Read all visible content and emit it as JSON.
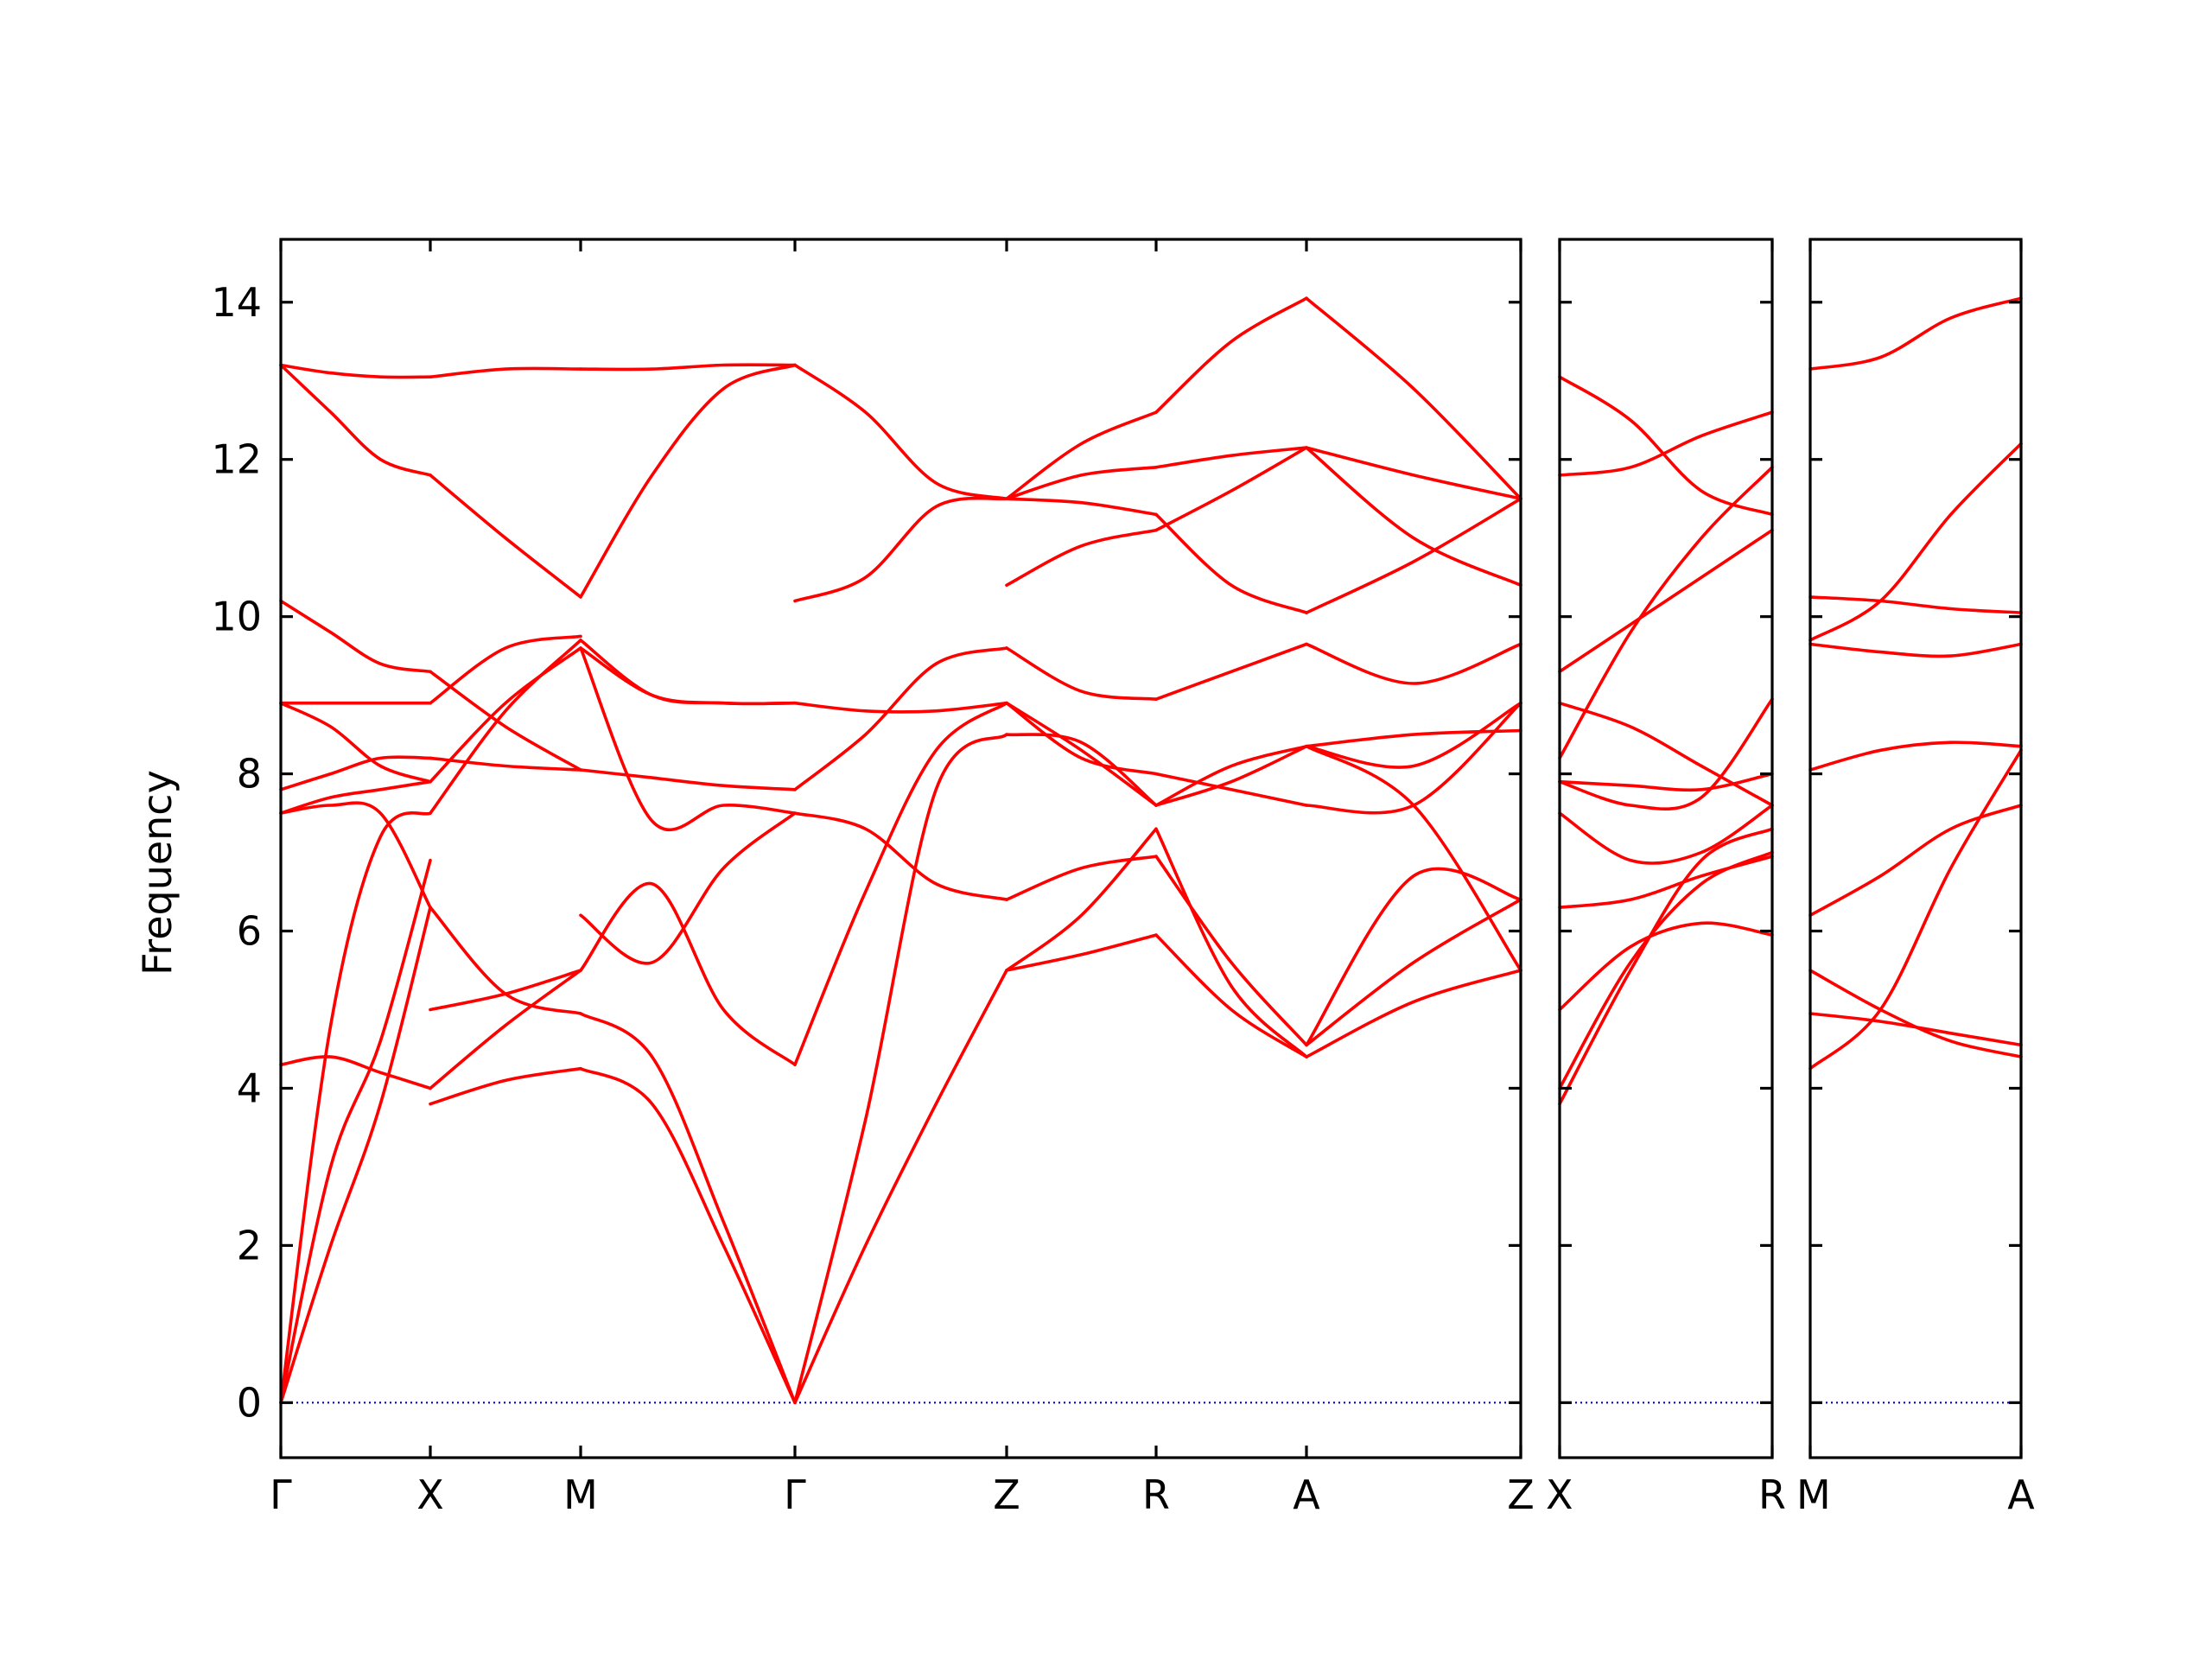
{
  "chart_data": {
    "type": "line",
    "ylabel": "Frequency",
    "ylim": [
      -0.7,
      14.8
    ],
    "yticks": [
      0,
      2,
      4,
      6,
      8,
      10,
      12,
      14
    ],
    "grid": false,
    "legend": "none",
    "colors": {
      "bands": "#ff0000",
      "zero_line": "#0000cc",
      "axes": "#000000"
    },
    "x_labels": [
      "Γ",
      "X",
      "M",
      "Γ",
      "Z",
      "R",
      "A",
      "Z",
      "X",
      "R",
      "M",
      "A"
    ],
    "segments": [
      {
        "from": "Γ",
        "to": "X",
        "bands": [
          [
            0,
            2.0,
            3.8,
            6.3
          ],
          [
            0,
            3.0,
            4.6,
            6.9
          ],
          [
            0,
            4.8,
            7.2,
            7.5
          ],
          [
            4.3,
            4.4,
            4.2,
            4.0
          ],
          [
            7.5,
            7.6,
            7.5,
            6.3
          ],
          [
            7.5,
            7.7,
            7.8,
            7.9
          ],
          [
            7.8,
            8.0,
            8.2,
            8.2
          ],
          [
            8.9,
            8.9,
            8.9,
            8.9
          ],
          [
            8.9,
            8.6,
            8.1,
            7.9
          ],
          [
            10.2,
            9.8,
            9.4,
            9.3
          ],
          [
            13.2,
            12.6,
            12.0,
            11.8
          ],
          [
            13.2,
            13.1,
            13.05,
            13.05
          ]
        ]
      },
      {
        "from": "X",
        "to": "M",
        "bands": [
          [
            3.8,
            4.1,
            4.25
          ],
          [
            4.0,
            4.8,
            5.5
          ],
          [
            5.0,
            5.2,
            5.5
          ],
          [
            6.3,
            5.2,
            4.95
          ],
          [
            7.5,
            8.8,
            9.7
          ],
          [
            7.9,
            8.9,
            9.6
          ],
          [
            8.2,
            8.1,
            8.05
          ],
          [
            8.9,
            9.6,
            9.75
          ],
          [
            9.3,
            8.6,
            8.05
          ],
          [
            11.8,
            11.0,
            10.25
          ],
          [
            13.05,
            13.15,
            13.15
          ]
        ]
      },
      {
        "from": "M",
        "to": "Γ",
        "bands": [
          [
            4.25,
            3.8,
            2.0,
            0
          ],
          [
            4.95,
            4.4,
            2.3,
            0
          ],
          [
            5.5,
            6.6,
            5.0,
            4.3
          ],
          [
            6.2,
            5.6,
            6.8,
            7.5
          ],
          [
            9.6,
            7.4,
            7.6,
            7.5
          ],
          [
            9.7,
            9.0,
            8.9,
            8.9
          ],
          [
            9.6,
            9.0,
            8.9,
            8.9
          ],
          [
            8.05,
            7.95,
            7.85,
            7.8
          ],
          [
            10.25,
            11.8,
            12.9,
            13.2
          ],
          [
            13.15,
            13.15,
            13.2,
            13.2
          ]
        ]
      },
      {
        "from": "Γ",
        "to": "Z",
        "bands": [
          [
            0,
            2.0,
            3.8,
            5.5
          ],
          [
            0,
            3.6,
            7.8,
            8.5
          ],
          [
            4.3,
            6.5,
            8.3,
            8.9
          ],
          [
            7.5,
            7.3,
            6.6,
            6.4
          ],
          [
            7.8,
            8.5,
            9.4,
            9.6
          ],
          [
            8.9,
            8.8,
            8.8,
            8.9
          ],
          [
            10.2,
            10.5,
            11.4,
            11.5
          ],
          [
            13.2,
            12.6,
            11.7,
            11.5
          ]
        ]
      },
      {
        "from": "Z",
        "to": "R",
        "bands": [
          [
            5.5,
            5.7,
            5.95
          ],
          [
            5.5,
            6.2,
            7.3
          ],
          [
            6.4,
            6.8,
            6.95
          ],
          [
            8.5,
            8.4,
            7.6
          ],
          [
            8.9,
            8.3,
            7.6
          ],
          [
            8.9,
            8.2,
            8.0
          ],
          [
            9.6,
            9.05,
            8.95
          ],
          [
            10.4,
            10.9,
            11.1
          ],
          [
            11.5,
            11.45,
            11.3
          ],
          [
            11.5,
            11.8,
            11.9
          ],
          [
            11.5,
            12.2,
            12.6
          ]
        ]
      },
      {
        "from": "R",
        "to": "A",
        "bands": [
          [
            5.95,
            5.0,
            4.4
          ],
          [
            7.3,
            5.3,
            4.4
          ],
          [
            6.95,
            5.6,
            4.55
          ],
          [
            7.6,
            7.9,
            8.35
          ],
          [
            8.0,
            7.8,
            7.6
          ],
          [
            7.6,
            8.1,
            8.35
          ],
          [
            8.95,
            9.3,
            9.65
          ],
          [
            11.3,
            10.4,
            10.05
          ],
          [
            11.1,
            11.6,
            12.15
          ],
          [
            11.9,
            12.05,
            12.15
          ],
          [
            12.6,
            13.5,
            14.05
          ]
        ]
      },
      {
        "from": "A",
        "to": "Z",
        "bands": [
          [
            4.4,
            5.1,
            5.5
          ],
          [
            4.55,
            6.7,
            6.4
          ],
          [
            4.55,
            5.6,
            6.4
          ],
          [
            8.35,
            7.6,
            5.5
          ],
          [
            7.6,
            7.6,
            8.9
          ],
          [
            8.35,
            8.5,
            8.55
          ],
          [
            8.35,
            8.1,
            8.9
          ],
          [
            9.65,
            9.15,
            9.65
          ],
          [
            10.05,
            10.7,
            11.5
          ],
          [
            12.15,
            11.0,
            10.4
          ],
          [
            12.15,
            11.8,
            11.5
          ],
          [
            14.05,
            12.9,
            11.5
          ]
        ]
      },
      {
        "from": "X",
        "to": "R",
        "bands": [
          [
            3.8,
            5.5,
            6.9,
            7.3
          ],
          [
            4.0,
            5.6,
            6.6,
            7.0
          ],
          [
            5.0,
            5.8,
            6.1,
            5.95
          ],
          [
            6.3,
            6.4,
            6.7,
            6.95
          ],
          [
            7.5,
            6.9,
            7.0,
            7.6
          ],
          [
            7.9,
            7.6,
            7.7,
            8.95
          ],
          [
            7.9,
            7.85,
            7.8,
            8.0
          ],
          [
            8.9,
            8.6,
            8.1,
            7.6
          ],
          [
            8.2,
            9.8,
            11.0,
            11.9
          ],
          [
            9.3,
            9.9,
            10.5,
            11.1
          ],
          [
            13.05,
            12.5,
            11.6,
            11.3
          ],
          [
            11.8,
            11.9,
            12.3,
            12.6
          ]
        ]
      },
      {
        "from": "M",
        "to": "A",
        "bands": [
          [
            4.25,
            5.0,
            6.8,
            8.3
          ],
          [
            4.95,
            4.85,
            4.7,
            4.55
          ],
          [
            5.5,
            5.0,
            4.6,
            4.4
          ],
          [
            6.2,
            6.7,
            7.3,
            7.6
          ],
          [
            8.05,
            8.3,
            8.4,
            8.35
          ],
          [
            9.7,
            10.2,
            11.3,
            12.2
          ],
          [
            9.65,
            9.55,
            9.5,
            9.65
          ],
          [
            10.25,
            10.2,
            10.1,
            10.05
          ],
          [
            13.15,
            13.3,
            13.8,
            14.05
          ]
        ]
      }
    ]
  }
}
